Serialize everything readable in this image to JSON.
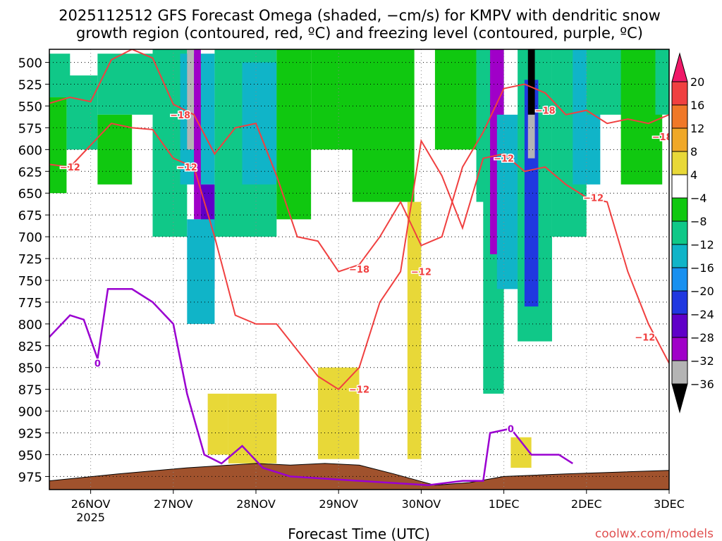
{
  "chart_data": {
    "type": "heatmap",
    "title_line1": "2025112512 GFS Forecast Omega (shaded, −cm/s) for KMPV with dendritic snow",
    "title_line2": "growth region (contoured, red, ºC) and freezing level (contoured, purple, ºC)",
    "xlabel": "Forecast Time (UTC)",
    "credit": "coolwx.com/models",
    "x_ticks": [
      "26NOV",
      "27NOV",
      "28NOV",
      "29NOV",
      "30NOV",
      "1DEC",
      "2DEC",
      "3DEC"
    ],
    "x_tick_sub": "2025",
    "x_range_hours": [
      0,
      180
    ],
    "y_ticks": [
      500,
      525,
      550,
      575,
      600,
      625,
      650,
      675,
      700,
      725,
      750,
      775,
      800,
      825,
      850,
      875,
      900,
      925,
      950,
      975
    ],
    "y_range_hpa": [
      485,
      990
    ],
    "grid": true,
    "colorbar": {
      "labels": [
        "20",
        "16",
        "12",
        "8",
        "4",
        "−4",
        "−8",
        "−12",
        "−16",
        "−20",
        "−24",
        "−28",
        "−32",
        "−36"
      ],
      "colors": [
        "#f01868",
        "#f04040",
        "#f07828",
        "#f0a828",
        "#e8d838",
        "#ffffff",
        "#10c810",
        "#10c888",
        "#10b4c8",
        "#1890f0",
        "#2038e0",
        "#6000c8",
        "#a000c8",
        "#b4b4b4",
        "#000000"
      ]
    },
    "dgz_labels": [
      "−18",
      "−12"
    ],
    "freezing_label": "0",
    "dgz_minus18_path": [
      [
        0,
        547
      ],
      [
        6,
        540
      ],
      [
        12,
        545
      ],
      [
        18,
        497
      ],
      [
        24,
        485
      ],
      [
        30,
        495
      ],
      [
        36,
        548
      ],
      [
        42,
        560
      ],
      [
        48,
        605
      ],
      [
        54,
        575
      ],
      [
        60,
        570
      ],
      [
        66,
        630
      ],
      [
        72,
        700
      ],
      [
        78,
        705
      ],
      [
        84,
        740
      ],
      [
        90,
        732
      ],
      [
        96,
        700
      ],
      [
        102,
        660
      ],
      [
        108,
        710
      ],
      [
        114,
        700
      ],
      [
        120,
        620
      ],
      [
        126,
        580
      ],
      [
        132,
        530
      ],
      [
        138,
        525
      ],
      [
        144,
        535
      ],
      [
        150,
        560
      ],
      [
        156,
        555
      ],
      [
        162,
        570
      ],
      [
        168,
        565
      ],
      [
        174,
        570
      ],
      [
        180,
        560
      ]
    ],
    "dgz_minus12_path": [
      [
        0,
        617
      ],
      [
        6,
        620
      ],
      [
        12,
        595
      ],
      [
        18,
        570
      ],
      [
        24,
        575
      ],
      [
        30,
        577
      ],
      [
        36,
        610
      ],
      [
        42,
        620
      ],
      [
        48,
        700
      ],
      [
        54,
        790
      ],
      [
        60,
        800
      ],
      [
        66,
        800
      ],
      [
        72,
        830
      ],
      [
        78,
        860
      ],
      [
        84,
        875
      ],
      [
        90,
        850
      ],
      [
        96,
        775
      ],
      [
        102,
        740
      ],
      [
        108,
        590
      ],
      [
        114,
        630
      ],
      [
        120,
        690
      ],
      [
        126,
        610
      ],
      [
        132,
        605
      ],
      [
        138,
        625
      ],
      [
        144,
        620
      ],
      [
        150,
        640
      ],
      [
        156,
        655
      ],
      [
        162,
        660
      ],
      [
        168,
        740
      ],
      [
        174,
        800
      ],
      [
        180,
        845
      ]
    ],
    "freezing_path": [
      [
        0,
        815
      ],
      [
        6,
        790
      ],
      [
        10,
        795
      ],
      [
        14,
        840
      ],
      [
        17,
        760
      ],
      [
        24,
        760
      ],
      [
        30,
        775
      ],
      [
        36,
        800
      ],
      [
        40,
        880
      ],
      [
        45,
        950
      ],
      [
        50,
        960
      ],
      [
        56,
        940
      ],
      [
        62,
        965
      ],
      [
        70,
        975
      ],
      [
        110,
        985
      ],
      [
        120,
        980
      ],
      [
        126,
        980
      ],
      [
        128,
        925
      ],
      [
        134,
        920
      ],
      [
        140,
        950
      ],
      [
        148,
        950
      ],
      [
        152,
        960
      ]
    ],
    "terrain_top_hpa": [
      [
        0,
        980
      ],
      [
        20,
        972
      ],
      [
        40,
        965
      ],
      [
        60,
        960
      ],
      [
        70,
        962
      ],
      [
        80,
        960
      ],
      [
        90,
        962
      ],
      [
        100,
        972
      ],
      [
        112,
        985
      ],
      [
        122,
        982
      ],
      [
        132,
        975
      ],
      [
        150,
        972
      ],
      [
        165,
        970
      ],
      [
        180,
        968
      ]
    ],
    "omega_cells": [
      {
        "h": [
          0,
          6
        ],
        "p": [
          490,
          540
        ],
        "v": -8
      },
      {
        "h": [
          0,
          5
        ],
        "p": [
          540,
          650
        ],
        "v": -6
      },
      {
        "h": [
          5,
          14
        ],
        "p": [
          515,
          600
        ],
        "v": -10
      },
      {
        "h": [
          14,
          30
        ],
        "p": [
          490,
          560
        ],
        "v": -8
      },
      {
        "h": [
          14,
          24
        ],
        "p": [
          560,
          640
        ],
        "v": -6
      },
      {
        "h": [
          30,
          40
        ],
        "p": [
          485,
          700
        ],
        "v": -10
      },
      {
        "h": [
          38,
          48
        ],
        "p": [
          490,
          640
        ],
        "v": -12
      },
      {
        "h": [
          40,
          42
        ],
        "p": [
          485,
          600
        ],
        "v": -32
      },
      {
        "h": [
          42,
          44
        ],
        "p": [
          485,
          680
        ],
        "v": -28
      },
      {
        "h": [
          44,
          48
        ],
        "p": [
          640,
          760
        ],
        "v": -24
      },
      {
        "h": [
          40,
          48
        ],
        "p": [
          680,
          800
        ],
        "v": -14
      },
      {
        "h": [
          48,
          66
        ],
        "p": [
          485,
          700
        ],
        "v": -8
      },
      {
        "h": [
          56,
          66
        ],
        "p": [
          500,
          640
        ],
        "v": -12
      },
      {
        "h": [
          66,
          76
        ],
        "p": [
          485,
          680
        ],
        "v": -6
      },
      {
        "h": [
          76,
          92
        ],
        "p": [
          485,
          600
        ],
        "v": -6
      },
      {
        "h": [
          88,
          106
        ],
        "p": [
          485,
          660
        ],
        "v": -7
      },
      {
        "h": [
          112,
          124
        ],
        "p": [
          485,
          600
        ],
        "v": -6
      },
      {
        "h": [
          124,
          128
        ],
        "p": [
          485,
          660
        ],
        "v": -8
      },
      {
        "h": [
          126,
          132
        ],
        "p": [
          485,
          880
        ],
        "v": -10
      },
      {
        "h": [
          128,
          132
        ],
        "p": [
          485,
          720
        ],
        "v": -28
      },
      {
        "h": [
          130,
          138
        ],
        "p": [
          560,
          760
        ],
        "v": -14
      },
      {
        "h": [
          136,
          146
        ],
        "p": [
          485,
          820
        ],
        "v": -10
      },
      {
        "h": [
          138,
          142
        ],
        "p": [
          520,
          780
        ],
        "v": -22
      },
      {
        "h": [
          139,
          141
        ],
        "p": [
          485,
          560
        ],
        "v": -36
      },
      {
        "h": [
          139,
          141
        ],
        "p": [
          560,
          610
        ],
        "v": -32
      },
      {
        "h": [
          146,
          156
        ],
        "p": [
          485,
          700
        ],
        "v": -10
      },
      {
        "h": [
          152,
          160
        ],
        "p": [
          485,
          640
        ],
        "v": -12
      },
      {
        "h": [
          156,
          172
        ],
        "p": [
          485,
          560
        ],
        "v": -8
      },
      {
        "h": [
          166,
          178
        ],
        "p": [
          485,
          640
        ],
        "v": -6
      },
      {
        "h": [
          176,
          180
        ],
        "p": [
          485,
          560
        ],
        "v": -8
      },
      {
        "h": [
          46,
          52
        ],
        "p": [
          880,
          950
        ],
        "v": 6
      },
      {
        "h": [
          52,
          66
        ],
        "p": [
          880,
          960
        ],
        "v": 5
      },
      {
        "h": [
          78,
          90
        ],
        "p": [
          850,
          955
        ],
        "v": 5
      },
      {
        "h": [
          104,
          108
        ],
        "p": [
          660,
          955
        ],
        "v": 5
      },
      {
        "h": [
          134,
          140
        ],
        "p": [
          930,
          965
        ],
        "v": 5
      }
    ]
  }
}
